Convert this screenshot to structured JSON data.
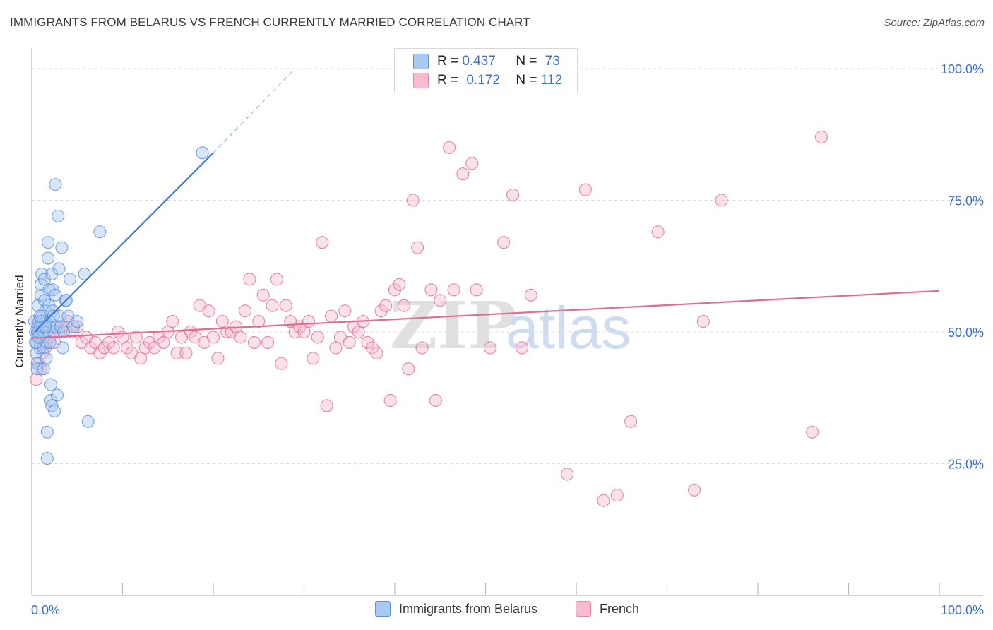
{
  "title": "IMMIGRANTS FROM BELARUS VS FRENCH CURRENTLY MARRIED CORRELATION CHART",
  "source": "Source: ZipAtlas.com",
  "legend_top": [
    {
      "r_label": "R = ",
      "r_value": "0.437",
      "n_label": "N = ",
      "n_value": "73",
      "color": "#a9c8f2",
      "border": "#5b8fd8"
    },
    {
      "r_label": "R = ",
      "r_value": "0.172",
      "n_label": "N = ",
      "n_value": "112",
      "color": "#f7bcd0",
      "border": "#e38aa8"
    }
  ],
  "legend_bottom": [
    {
      "label": "Immigrants from Belarus",
      "color": "#a9c8f2",
      "border": "#5b8fd8"
    },
    {
      "label": "French",
      "color": "#f7bcd0",
      "border": "#e38aa8"
    }
  ],
  "watermark": {
    "zip": "ZIP",
    "atlas": "atlas"
  },
  "chart_data": {
    "type": "scatter",
    "ylabel": "Currently Married",
    "xlim": [
      0,
      100
    ],
    "ylim": [
      0,
      100
    ],
    "x_tick_labels": [
      {
        "value": 0,
        "label": "0.0%"
      },
      {
        "value": 100,
        "label": "100.0%"
      }
    ],
    "y_tick_labels": [
      {
        "value": 25,
        "label": "25.0%"
      },
      {
        "value": 50,
        "label": "50.0%"
      },
      {
        "value": 75,
        "label": "75.0%"
      },
      {
        "value": 100,
        "label": "100.0%"
      }
    ],
    "grid": "horizontal dashed",
    "series": [
      {
        "name": "Immigrants from Belarus",
        "color": "#5b8fd8",
        "fill": "#a9c8f2",
        "trend": {
          "x0": 0.3,
          "y0": 50,
          "x1": 20,
          "y1": 84,
          "dash_to_x": 29,
          "dash_to_y": 100
        },
        "points": [
          [
            0.3,
            52
          ],
          [
            0.4,
            50
          ],
          [
            0.5,
            48
          ],
          [
            0.5,
            46
          ],
          [
            0.6,
            44
          ],
          [
            0.6,
            43
          ],
          [
            0.7,
            51
          ],
          [
            0.7,
            55
          ],
          [
            0.8,
            52
          ],
          [
            0.8,
            50
          ],
          [
            0.9,
            49
          ],
          [
            0.9,
            47
          ],
          [
            1.0,
            57
          ],
          [
            1.0,
            59
          ],
          [
            1.1,
            61
          ],
          [
            1.1,
            53
          ],
          [
            1.2,
            51
          ],
          [
            1.2,
            49
          ],
          [
            1.3,
            47
          ],
          [
            1.3,
            43
          ],
          [
            1.4,
            60
          ],
          [
            1.4,
            56
          ],
          [
            1.5,
            54
          ],
          [
            1.5,
            52
          ],
          [
            1.6,
            50
          ],
          [
            1.6,
            48
          ],
          [
            1.7,
            26
          ],
          [
            1.7,
            31
          ],
          [
            1.8,
            67
          ],
          [
            1.8,
            64
          ],
          [
            1.9,
            58
          ],
          [
            1.9,
            55
          ],
          [
            2.0,
            52
          ],
          [
            2.0,
            51
          ],
          [
            2.1,
            40
          ],
          [
            2.1,
            37
          ],
          [
            2.2,
            36
          ],
          [
            2.2,
            61
          ],
          [
            2.3,
            58
          ],
          [
            2.3,
            54
          ],
          [
            2.4,
            53
          ],
          [
            2.5,
            50
          ],
          [
            2.5,
            35
          ],
          [
            2.6,
            78
          ],
          [
            2.6,
            57
          ],
          [
            2.7,
            51
          ],
          [
            2.8,
            38
          ],
          [
            2.9,
            72
          ],
          [
            3.0,
            62
          ],
          [
            3.1,
            53
          ],
          [
            3.2,
            51
          ],
          [
            3.3,
            66
          ],
          [
            3.4,
            47
          ],
          [
            3.5,
            50
          ],
          [
            3.7,
            56
          ],
          [
            3.8,
            56
          ],
          [
            4.0,
            53
          ],
          [
            4.2,
            60
          ],
          [
            4.6,
            51
          ],
          [
            5.0,
            52
          ],
          [
            5.8,
            61
          ],
          [
            6.2,
            33
          ],
          [
            7.5,
            69
          ],
          [
            18.8,
            84
          ],
          [
            0.6,
            50
          ],
          [
            1.1,
            52
          ],
          [
            0.9,
            53
          ],
          [
            1.3,
            50
          ],
          [
            1.6,
            45
          ],
          [
            2.0,
            48
          ],
          [
            0.4,
            48
          ],
          [
            0.7,
            49
          ],
          [
            1.5,
            51
          ]
        ]
      },
      {
        "name": "French",
        "color": "#e06b94",
        "fill": "#f7bcd0",
        "trend": {
          "x0": 0,
          "y0": 48.8,
          "x1": 100,
          "y1": 57.8
        },
        "points": [
          [
            0.5,
            41
          ],
          [
            0.8,
            44
          ],
          [
            1.0,
            43
          ],
          [
            1.2,
            46
          ],
          [
            1.5,
            47
          ],
          [
            2.0,
            49
          ],
          [
            2.5,
            48
          ],
          [
            3.0,
            50
          ],
          [
            3.5,
            51
          ],
          [
            4.0,
            52
          ],
          [
            4.5,
            50
          ],
          [
            5.0,
            51
          ],
          [
            5.5,
            48
          ],
          [
            6.0,
            49
          ],
          [
            6.5,
            47
          ],
          [
            7.0,
            48
          ],
          [
            7.5,
            46
          ],
          [
            8.0,
            47
          ],
          [
            8.5,
            48
          ],
          [
            9.0,
            47
          ],
          [
            9.5,
            50
          ],
          [
            10.0,
            49
          ],
          [
            10.5,
            47
          ],
          [
            11.0,
            46
          ],
          [
            11.5,
            49
          ],
          [
            12.0,
            45
          ],
          [
            12.5,
            47
          ],
          [
            13.0,
            48
          ],
          [
            13.5,
            47
          ],
          [
            14.0,
            49
          ],
          [
            14.5,
            48
          ],
          [
            15.0,
            50
          ],
          [
            15.5,
            52
          ],
          [
            16.0,
            46
          ],
          [
            16.5,
            49
          ],
          [
            17.0,
            46
          ],
          [
            17.5,
            50
          ],
          [
            18.0,
            49
          ],
          [
            18.5,
            55
          ],
          [
            19.0,
            48
          ],
          [
            19.5,
            54
          ],
          [
            20.0,
            49
          ],
          [
            20.5,
            45
          ],
          [
            21.0,
            52
          ],
          [
            21.5,
            50
          ],
          [
            22.0,
            50
          ],
          [
            22.5,
            51
          ],
          [
            23.0,
            49
          ],
          [
            23.5,
            54
          ],
          [
            24.0,
            60
          ],
          [
            24.5,
            48
          ],
          [
            25.0,
            52
          ],
          [
            25.5,
            57
          ],
          [
            26.0,
            48
          ],
          [
            26.5,
            55
          ],
          [
            27.0,
            60
          ],
          [
            27.5,
            44
          ],
          [
            28.0,
            55
          ],
          [
            28.5,
            52
          ],
          [
            29.0,
            50
          ],
          [
            29.5,
            51
          ],
          [
            30.0,
            50
          ],
          [
            30.5,
            52
          ],
          [
            31.0,
            45
          ],
          [
            31.5,
            49
          ],
          [
            32.0,
            67
          ],
          [
            32.5,
            36
          ],
          [
            33.0,
            53
          ],
          [
            33.5,
            47
          ],
          [
            34.0,
            49
          ],
          [
            34.5,
            54
          ],
          [
            35.0,
            48
          ],
          [
            35.5,
            51
          ],
          [
            36.0,
            50
          ],
          [
            36.5,
            52
          ],
          [
            37.0,
            48
          ],
          [
            37.5,
            47
          ],
          [
            38.0,
            46
          ],
          [
            38.5,
            54
          ],
          [
            39.0,
            55
          ],
          [
            39.5,
            37
          ],
          [
            40.0,
            58
          ],
          [
            40.5,
            59
          ],
          [
            41.0,
            55
          ],
          [
            41.5,
            43
          ],
          [
            42.0,
            75
          ],
          [
            42.5,
            66
          ],
          [
            43.0,
            47
          ],
          [
            44.0,
            58
          ],
          [
            44.5,
            37
          ],
          [
            45.0,
            56
          ],
          [
            46.0,
            85
          ],
          [
            46.5,
            58
          ],
          [
            47.5,
            80
          ],
          [
            48.5,
            82
          ],
          [
            49.0,
            58
          ],
          [
            50.5,
            47
          ],
          [
            52.0,
            67
          ],
          [
            53.0,
            76
          ],
          [
            54.0,
            47
          ],
          [
            55.0,
            57
          ],
          [
            59.0,
            23
          ],
          [
            61.0,
            77
          ],
          [
            63.0,
            18
          ],
          [
            64.5,
            19
          ],
          [
            66.0,
            33
          ],
          [
            69.0,
            69
          ],
          [
            73.0,
            20
          ],
          [
            74.0,
            52
          ],
          [
            76.0,
            75
          ],
          [
            86.0,
            31
          ],
          [
            87.0,
            87
          ]
        ]
      }
    ]
  }
}
